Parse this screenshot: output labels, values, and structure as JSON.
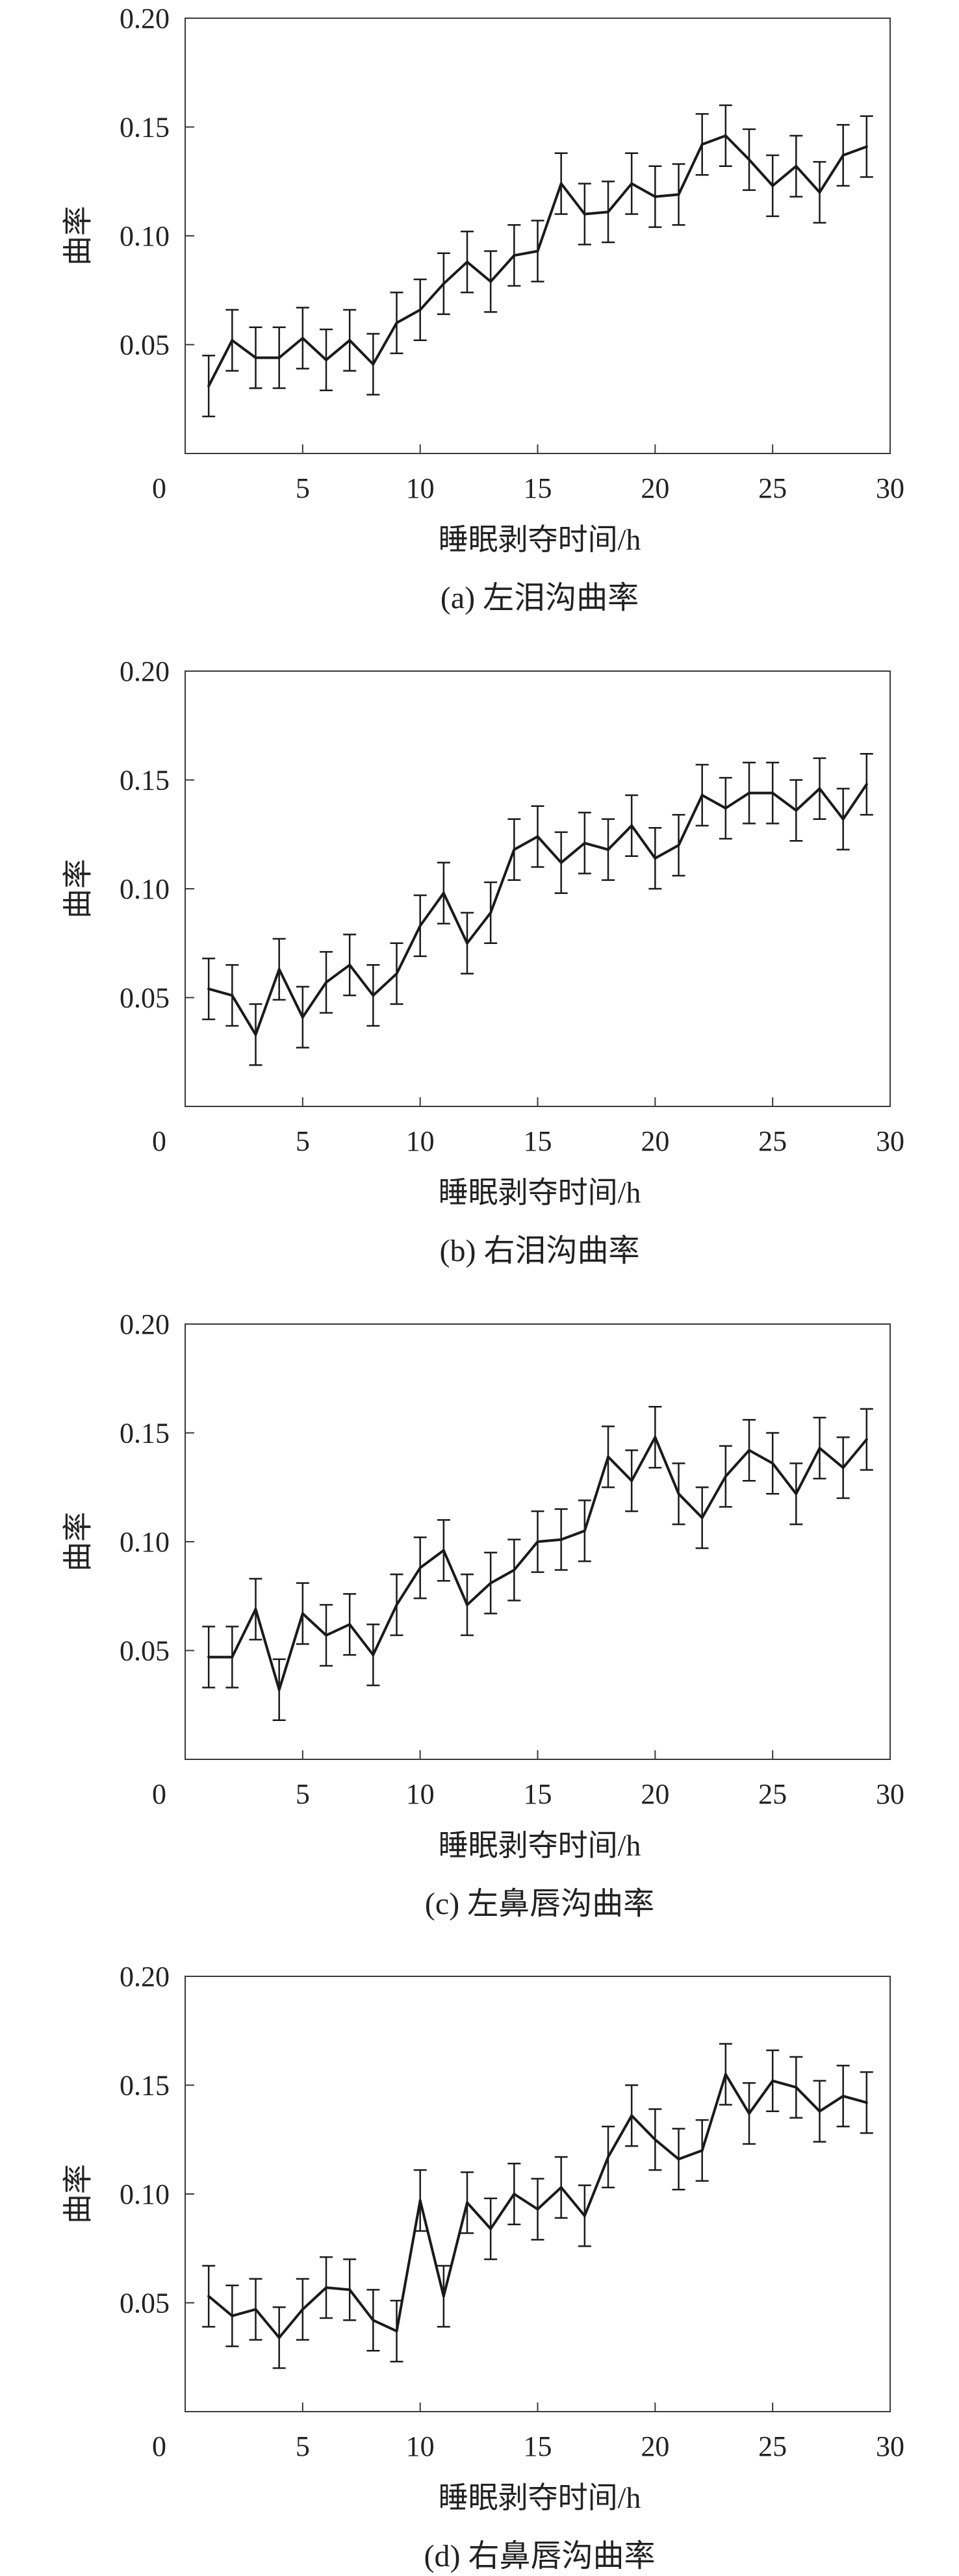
{
  "chart_data": [
    {
      "type": "line",
      "caption": "(a) 左泪沟曲率",
      "xlabel": "睡眠剥夺时间/h",
      "ylabel": "曲率",
      "xlim": [
        0,
        30
      ],
      "ylim": [
        0,
        0.2
      ],
      "xticks": [
        "0",
        "5",
        "10",
        "15",
        "20",
        "25",
        "30"
      ],
      "yticks": [
        "0.05",
        "0.10",
        "0.15",
        "0.20"
      ],
      "grid": false,
      "x": [
        1,
        2,
        3,
        4,
        5,
        6,
        7,
        8,
        9,
        10,
        11,
        12,
        13,
        14,
        15,
        16,
        17,
        18,
        19,
        20,
        21,
        22,
        23,
        24,
        25,
        26,
        27,
        28,
        29
      ],
      "values": [
        0.031,
        0.052,
        0.044,
        0.044,
        0.053,
        0.043,
        0.052,
        0.041,
        0.06,
        0.066,
        0.078,
        0.088,
        0.079,
        0.091,
        0.093,
        0.124,
        0.11,
        0.111,
        0.124,
        0.118,
        0.119,
        0.142,
        0.146,
        0.135,
        0.123,
        0.132,
        0.12,
        0.137,
        0.141
      ],
      "errors": [
        0.014,
        0.014,
        0.014,
        0.014,
        0.014,
        0.014,
        0.014,
        0.014,
        0.014,
        0.014,
        0.014,
        0.014,
        0.014,
        0.014,
        0.014,
        0.014,
        0.014,
        0.014,
        0.014,
        0.014,
        0.014,
        0.014,
        0.014,
        0.014,
        0.014,
        0.014,
        0.014,
        0.014,
        0.014
      ]
    },
    {
      "type": "line",
      "caption": "(b) 右泪沟曲率",
      "xlabel": "睡眠剥夺时间/h",
      "ylabel": "曲率",
      "xlim": [
        0,
        30
      ],
      "ylim": [
        0,
        0.2
      ],
      "xticks": [
        "0",
        "5",
        "10",
        "15",
        "20",
        "25",
        "30"
      ],
      "yticks": [
        "0.05",
        "0.10",
        "0.15",
        "0.20"
      ],
      "grid": false,
      "x": [
        1,
        2,
        3,
        4,
        5,
        6,
        7,
        8,
        9,
        10,
        11,
        12,
        13,
        14,
        15,
        16,
        17,
        18,
        19,
        20,
        21,
        22,
        23,
        24,
        25,
        26,
        27,
        28,
        29
      ],
      "values": [
        0.054,
        0.051,
        0.033,
        0.063,
        0.041,
        0.057,
        0.065,
        0.051,
        0.061,
        0.083,
        0.098,
        0.075,
        0.089,
        0.118,
        0.124,
        0.112,
        0.121,
        0.118,
        0.129,
        0.114,
        0.12,
        0.143,
        0.137,
        0.144,
        0.144,
        0.136,
        0.146,
        0.132,
        0.148
      ],
      "errors": [
        0.014,
        0.014,
        0.014,
        0.014,
        0.014,
        0.014,
        0.014,
        0.014,
        0.014,
        0.014,
        0.014,
        0.014,
        0.014,
        0.014,
        0.014,
        0.014,
        0.014,
        0.014,
        0.014,
        0.014,
        0.014,
        0.014,
        0.014,
        0.014,
        0.014,
        0.014,
        0.014,
        0.014,
        0.014
      ]
    },
    {
      "type": "line",
      "caption": "(c) 左鼻唇沟曲率",
      "xlabel": "睡眠剥夺时间/h",
      "ylabel": "曲率",
      "xlim": [
        0,
        30
      ],
      "ylim": [
        0,
        0.2
      ],
      "xticks": [
        "0",
        "5",
        "10",
        "15",
        "20",
        "25",
        "30"
      ],
      "yticks": [
        "0.05",
        "0.10",
        "0.15",
        "0.20"
      ],
      "grid": false,
      "x": [
        1,
        2,
        3,
        4,
        5,
        6,
        7,
        8,
        9,
        10,
        11,
        12,
        13,
        14,
        15,
        16,
        17,
        18,
        19,
        20,
        21,
        22,
        23,
        24,
        25,
        26,
        27,
        28,
        29
      ],
      "values": [
        0.047,
        0.047,
        0.069,
        0.032,
        0.067,
        0.057,
        0.062,
        0.048,
        0.071,
        0.088,
        0.096,
        0.071,
        0.081,
        0.087,
        0.1,
        0.101,
        0.105,
        0.139,
        0.128,
        0.148,
        0.122,
        0.111,
        0.13,
        0.142,
        0.136,
        0.122,
        0.143,
        0.134,
        0.147
      ],
      "errors": [
        0.014,
        0.014,
        0.014,
        0.014,
        0.014,
        0.014,
        0.014,
        0.014,
        0.014,
        0.014,
        0.014,
        0.014,
        0.014,
        0.014,
        0.014,
        0.014,
        0.014,
        0.014,
        0.014,
        0.014,
        0.014,
        0.014,
        0.014,
        0.014,
        0.014,
        0.014,
        0.014,
        0.014,
        0.014
      ]
    },
    {
      "type": "line",
      "caption": "(d) 右鼻唇沟曲率",
      "xlabel": "睡眠剥夺时间/h",
      "ylabel": "曲率",
      "xlim": [
        0,
        30
      ],
      "ylim": [
        0,
        0.2
      ],
      "xticks": [
        "0",
        "5",
        "10",
        "15",
        "20",
        "25",
        "30"
      ],
      "yticks": [
        "0.05",
        "0.10",
        "0.15",
        "0.20"
      ],
      "grid": false,
      "x": [
        1,
        2,
        3,
        4,
        5,
        6,
        7,
        8,
        9,
        10,
        11,
        12,
        13,
        14,
        15,
        16,
        17,
        18,
        19,
        20,
        21,
        22,
        23,
        24,
        25,
        26,
        27,
        28,
        29
      ],
      "values": [
        0.053,
        0.044,
        0.047,
        0.034,
        0.047,
        0.057,
        0.056,
        0.042,
        0.037,
        0.097,
        0.053,
        0.096,
        0.084,
        0.1,
        0.093,
        0.103,
        0.09,
        0.117,
        0.136,
        0.125,
        0.116,
        0.12,
        0.155,
        0.137,
        0.152,
        0.149,
        0.138,
        0.145,
        0.142
      ],
      "errors": [
        0.014,
        0.014,
        0.014,
        0.014,
        0.014,
        0.014,
        0.014,
        0.014,
        0.014,
        0.014,
        0.014,
        0.014,
        0.014,
        0.014,
        0.014,
        0.014,
        0.014,
        0.014,
        0.014,
        0.014,
        0.014,
        0.014,
        0.014,
        0.014,
        0.014,
        0.014,
        0.014,
        0.014,
        0.014
      ]
    }
  ]
}
